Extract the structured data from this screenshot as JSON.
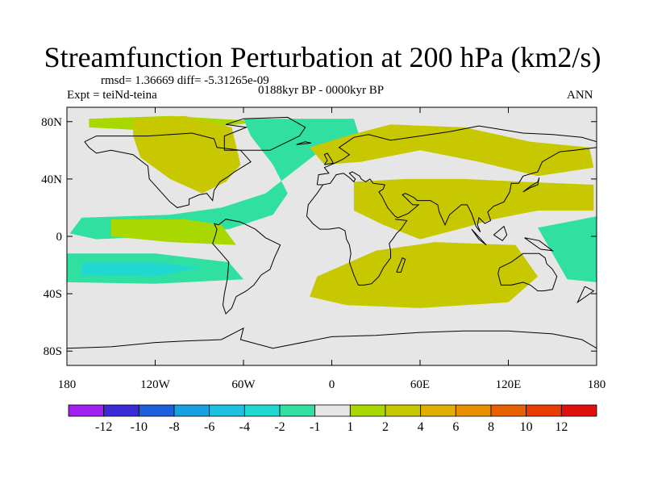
{
  "header": {
    "title": "Streamfunction Perturbation at 200 hPa (km2/s)",
    "stats": "rmsd= 1.36669 diff= -5.31265e-09",
    "expt": "Expt = teiNd-teina",
    "period": "0188kyr BP - 0000kyr BP",
    "season": "ANN"
  },
  "chart_data": {
    "type": "heatmap",
    "variable": "Streamfunction Perturbation",
    "units": "km2/s",
    "level": "200 hPa",
    "x_range": [
      -180,
      180
    ],
    "y_range": [
      -90,
      90
    ],
    "xticks": [
      {
        "value": -180,
        "label": "180"
      },
      {
        "value": -120,
        "label": "120W"
      },
      {
        "value": -60,
        "label": "60W"
      },
      {
        "value": 0,
        "label": "0"
      },
      {
        "value": 60,
        "label": "60E"
      },
      {
        "value": 120,
        "label": "120E"
      },
      {
        "value": 180,
        "label": "180"
      }
    ],
    "yticks": [
      {
        "value": 80,
        "label": "80N"
      },
      {
        "value": 40,
        "label": "40N"
      },
      {
        "value": 0,
        "label": "0"
      },
      {
        "value": -40,
        "label": "40S"
      },
      {
        "value": -80,
        "label": "80S"
      }
    ],
    "colorbar": {
      "levels": [
        -12,
        -10,
        -8,
        -6,
        -4,
        -2,
        -1,
        1,
        2,
        4,
        6,
        8,
        10,
        12
      ],
      "colors": [
        "#a020f0",
        "#3a2ad8",
        "#1e5fdc",
        "#18a0e0",
        "#1cc0e0",
        "#20d8d0",
        "#30e0a0",
        "#e6e6e6",
        "#a8d800",
        "#c8c800",
        "#e0b000",
        "#e89000",
        "#e86000",
        "#e83c00",
        "#e01010"
      ]
    },
    "regions": [
      {
        "name": "arctic-pacific-band",
        "value": 1.5,
        "poly": [
          [
            -165,
            82
          ],
          [
            -110,
            84
          ],
          [
            -45,
            80
          ],
          [
            -75,
            77
          ],
          [
            -130,
            74
          ],
          [
            -165,
            76
          ]
        ]
      },
      {
        "name": "atlantic-corridor",
        "value": -1.5,
        "poly": [
          [
            -60,
            82
          ],
          [
            15,
            82
          ],
          [
            20,
            66
          ],
          [
            -10,
            58
          ],
          [
            -30,
            42
          ],
          [
            -45,
            30
          ],
          [
            -75,
            20
          ],
          [
            -110,
            15
          ],
          [
            -170,
            13
          ],
          [
            -178,
            2
          ],
          [
            -160,
            -2
          ],
          [
            -120,
            0
          ],
          [
            -70,
            5
          ],
          [
            -40,
            15
          ],
          [
            -30,
            30
          ],
          [
            -40,
            50
          ],
          [
            -55,
            70
          ]
        ]
      },
      {
        "name": "north-america",
        "value": 2,
        "poly": [
          [
            -135,
            82
          ],
          [
            -100,
            84
          ],
          [
            -68,
            76
          ],
          [
            -62,
            50
          ],
          [
            -72,
            38
          ],
          [
            -88,
            30
          ],
          [
            -110,
            40
          ],
          [
            -130,
            55
          ],
          [
            -135,
            70
          ]
        ]
      },
      {
        "name": "eurasia-band",
        "value": 2,
        "poly": [
          [
            -15,
            62
          ],
          [
            10,
            70
          ],
          [
            40,
            78
          ],
          [
            90,
            76
          ],
          [
            135,
            66
          ],
          [
            175,
            62
          ],
          [
            178,
            48
          ],
          [
            140,
            42
          ],
          [
            100,
            52
          ],
          [
            60,
            60
          ],
          [
            20,
            52
          ],
          [
            -5,
            50
          ]
        ]
      },
      {
        "name": "siberia-core",
        "value": 3,
        "poly": [
          [
            30,
            70
          ],
          [
            50,
            76
          ],
          [
            80,
            74
          ],
          [
            80,
            68
          ],
          [
            55,
            66
          ]
        ]
      },
      {
        "name": "asia-tropics",
        "value": 2,
        "poly": [
          [
            15,
            38
          ],
          [
            50,
            40
          ],
          [
            90,
            40
          ],
          [
            130,
            38
          ],
          [
            178,
            36
          ],
          [
            178,
            18
          ],
          [
            140,
            18
          ],
          [
            110,
            12
          ],
          [
            90,
            6
          ],
          [
            60,
            -2
          ],
          [
            35,
            8
          ],
          [
            15,
            18
          ]
        ]
      },
      {
        "name": "asia-core",
        "value": 3,
        "poly": [
          [
            30,
            32
          ],
          [
            60,
            36
          ],
          [
            95,
            35
          ],
          [
            130,
            30
          ],
          [
            175,
            30
          ],
          [
            175,
            22
          ],
          [
            140,
            22
          ],
          [
            110,
            18
          ],
          [
            80,
            20
          ],
          [
            55,
            22
          ],
          [
            35,
            20
          ]
        ]
      },
      {
        "name": "south-indian",
        "value": 2,
        "poly": [
          [
            -10,
            -28
          ],
          [
            30,
            -10
          ],
          [
            70,
            -4
          ],
          [
            125,
            -6
          ],
          [
            140,
            -28
          ],
          [
            120,
            -46
          ],
          [
            60,
            -50
          ],
          [
            10,
            -48
          ],
          [
            -15,
            -42
          ]
        ]
      },
      {
        "name": "south-indian-core",
        "value": 3,
        "poly": [
          [
            20,
            -20
          ],
          [
            55,
            -12
          ],
          [
            100,
            -10
          ],
          [
            120,
            -20
          ],
          [
            100,
            -30
          ],
          [
            60,
            -32
          ],
          [
            25,
            -30
          ]
        ]
      },
      {
        "name": "south-pacific",
        "value": -1.5,
        "poly": [
          [
            -180,
            -12
          ],
          [
            -120,
            -12
          ],
          [
            -70,
            -18
          ],
          [
            -60,
            -30
          ],
          [
            -120,
            -33
          ],
          [
            -180,
            -32
          ]
        ]
      },
      {
        "name": "south-pacific-core",
        "value": -2.5,
        "poly": [
          [
            -170,
            -18
          ],
          [
            -120,
            -18
          ],
          [
            -90,
            -22
          ],
          [
            -120,
            -28
          ],
          [
            -170,
            -27
          ]
        ]
      },
      {
        "name": "tropical-pacific",
        "value": 1.5,
        "poly": [
          [
            -150,
            12
          ],
          [
            -100,
            12
          ],
          [
            -75,
            8
          ],
          [
            -65,
            -6
          ],
          [
            -110,
            -4
          ],
          [
            -150,
            0
          ]
        ]
      },
      {
        "name": "west-pacific",
        "value": -1.5,
        "poly": [
          [
            140,
            6
          ],
          [
            170,
            12
          ],
          [
            180,
            14
          ],
          [
            180,
            -32
          ],
          [
            160,
            -30
          ],
          [
            150,
            -12
          ]
        ]
      }
    ]
  }
}
